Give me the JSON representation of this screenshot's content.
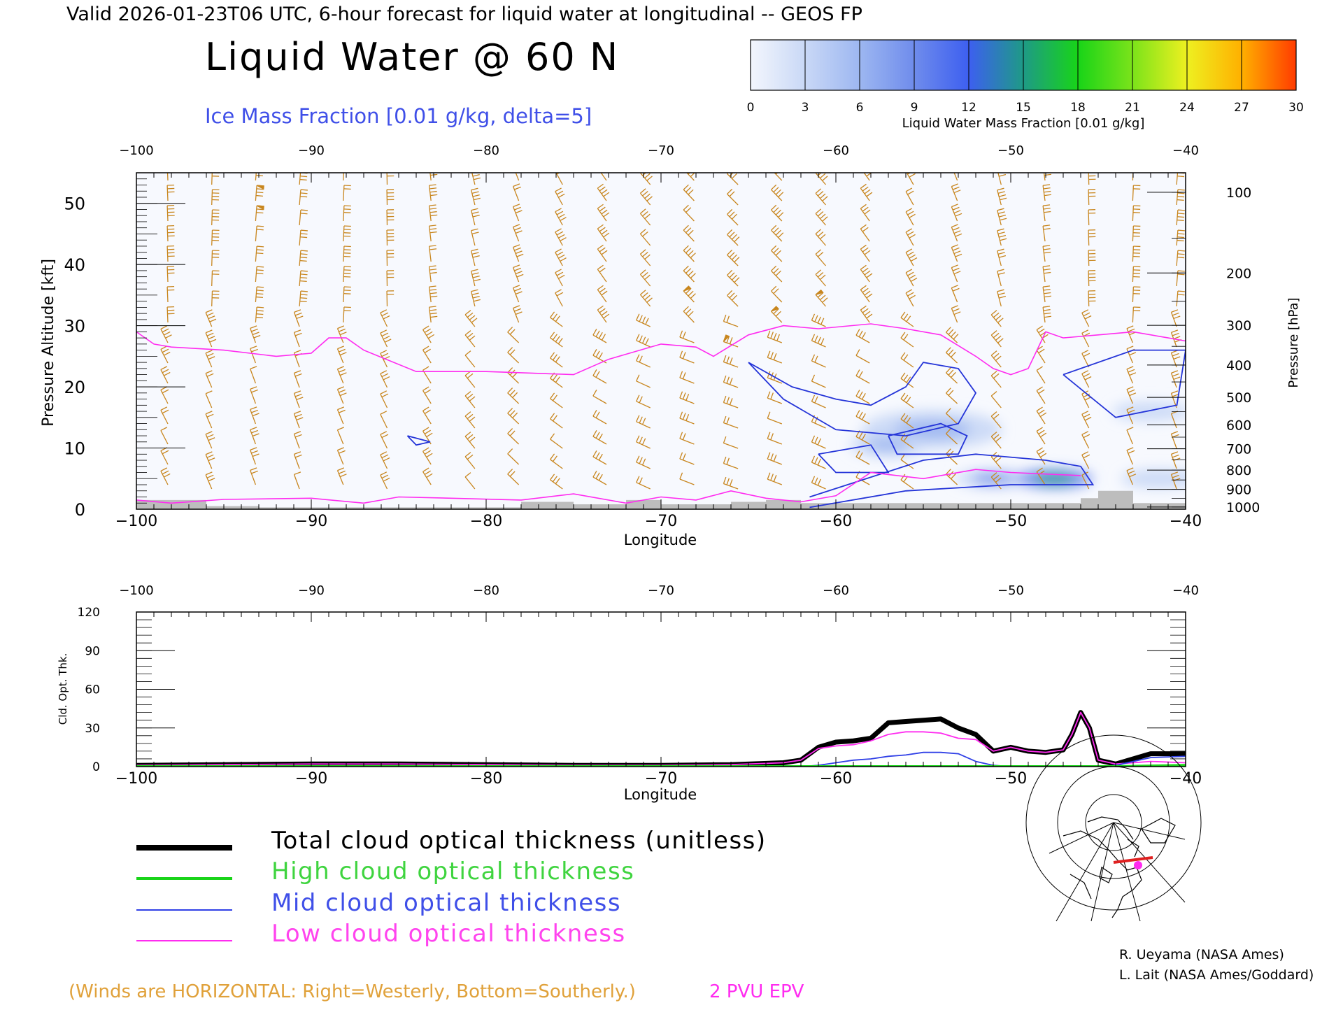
{
  "header": {
    "valid_line": "Valid 2026-01-23T06 UTC, 6-hour forecast for liquid water at longitudinal -- GEOS FP",
    "main_title": "Liquid Water @ 60 N",
    "contour_label": "Ice Mass Fraction [0.01 g/kg, delta=5]"
  },
  "colorbar": {
    "ticks": [
      "0",
      "3",
      "6",
      "9",
      "12",
      "15",
      "18",
      "21",
      "24",
      "27",
      "30"
    ],
    "colors": [
      "#f3f6fd",
      "#c9d8f6",
      "#9db7f1",
      "#6f8cec",
      "#3d5ff0",
      "#1e9a86",
      "#18d418",
      "#7be31a",
      "#eef020",
      "#ffb000",
      "#ff3b00"
    ],
    "label": "Liquid Water Mass Fraction [0.01 g/kg]"
  },
  "top_panel": {
    "x_ticks": [
      "−100",
      "−90",
      "−80",
      "−70",
      "−60",
      "−50",
      "−40"
    ],
    "y_left_ticks": [
      "0",
      "10",
      "20",
      "30",
      "40",
      "50"
    ],
    "y_left_label": "Pressure Altitude [kft]",
    "y_right_ticks": [
      "100",
      "200",
      "300",
      "400",
      "500",
      "600",
      "700",
      "800",
      "900",
      "1000"
    ],
    "y_right_label": "Pressure [hPa]",
    "x_label": "Longitude"
  },
  "bottom_panel": {
    "x_ticks": [
      "−100",
      "−90",
      "−80",
      "−70",
      "−60",
      "−50",
      "−40"
    ],
    "y_ticks": [
      "0",
      "30",
      "60",
      "90",
      "120"
    ],
    "y_label": "Cld. Opt. Thk.",
    "x_label": "Longitude"
  },
  "legend": {
    "items": [
      {
        "label": "Total cloud optical thickness (unitless)",
        "color": "#000000"
      },
      {
        "label": "High cloud optical thickness",
        "color": "#19d419"
      },
      {
        "label": "Mid cloud optical thickness",
        "color": "#2f3fe6"
      },
      {
        "label": "Low cloud optical thickness",
        "color": "#ff2cf0"
      }
    ]
  },
  "credits": {
    "line1": "R. Ueyama (NASA Ames)",
    "line2": "L. Lait (NASA Ames/Goddard)"
  },
  "footer": {
    "winds_note": "(Winds are HORIZONTAL: Right=Westerly, Bottom=Southerly.)",
    "pvu_label": "2 PVU EPV"
  },
  "colors": {
    "barb": "#c8861e",
    "pvu": "#ff2cf0",
    "ice": "#2434d8",
    "total": "#000000",
    "high": "#19d419",
    "mid": "#2f3fe6",
    "low": "#ff2cf0",
    "terrain": "#bdbdbd"
  },
  "chart_data": [
    {
      "type": "heatmap",
      "title": "Liquid Water @ 60 N",
      "xlabel": "Longitude",
      "ylabel": "Pressure Altitude [kft]",
      "xlim": [
        -100,
        -40
      ],
      "ylim": [
        0,
        55
      ],
      "colorbar_label": "Liquid Water Mass Fraction [0.01 g/kg]",
      "colorbar_range": [
        0,
        30
      ],
      "liquid_water_blobs": [
        {
          "lon": -54.5,
          "kft": 13.0,
          "peak": 6
        },
        {
          "lon": -57.0,
          "kft": 10.5,
          "peak": 5
        },
        {
          "lon": -51.0,
          "kft": 5.0,
          "peak": 9
        },
        {
          "lon": -47.5,
          "kft": 5.0,
          "peak": 16
        },
        {
          "lon": -41.5,
          "kft": 5.0,
          "peak": 3
        },
        {
          "lon": -42.0,
          "kft": 16.0,
          "peak": 2
        }
      ],
      "ice_contours": [
        {
          "lon": [
            -65,
            -62.5,
            -60,
            -58,
            -56,
            -55,
            -53,
            -52,
            -53,
            -56,
            -60,
            -63,
            -65
          ],
          "kft": [
            24,
            20,
            18,
            17,
            20,
            24,
            23,
            19,
            14,
            12,
            13,
            18,
            24
          ]
        },
        {
          "lon": [
            -61,
            -58,
            -57,
            -60,
            -61
          ],
          "kft": [
            9,
            10.5,
            6,
            6,
            9
          ]
        },
        {
          "lon": [
            -57,
            -54,
            -52.5,
            -53,
            -56.5,
            -57
          ],
          "kft": [
            12,
            14,
            12,
            9,
            9,
            12
          ]
        },
        {
          "lon": [
            -84.5,
            -83.2,
            -84,
            -84.5
          ],
          "kft": [
            12,
            11,
            10.5,
            12
          ]
        },
        {
          "lon": [
            -61.5,
            -55,
            -52,
            -48,
            -46,
            -45.3,
            -50,
            -56,
            -61.5
          ],
          "kft": [
            2,
            8,
            9,
            8,
            7,
            4,
            4,
            3,
            0.3
          ]
        },
        {
          "lon": [
            -47,
            -43,
            -40,
            -40.5,
            -44,
            -47
          ],
          "kft": [
            22,
            26,
            26,
            17,
            15,
            22
          ]
        }
      ],
      "pvu_2_line": {
        "lon": [
          -100,
          -99,
          -98,
          -95,
          -92,
          -90,
          -89,
          -88,
          -87,
          -84,
          -80,
          -75,
          -73,
          -70,
          -68,
          -67,
          -65,
          -63,
          -61,
          -58,
          -56,
          -54,
          -52,
          -51,
          -50,
          -49,
          -48,
          -47,
          -45,
          -43,
          -41,
          -40
        ],
        "kft": [
          29,
          27,
          26.5,
          26,
          25,
          25.5,
          28,
          28,
          26,
          22.5,
          22.5,
          22,
          24.5,
          27,
          26.5,
          25,
          28.5,
          30,
          29.5,
          30.3,
          29.5,
          28.5,
          25,
          23,
          22,
          23,
          29,
          28,
          28.5,
          29,
          28,
          27.5
        ]
      },
      "terrain": {
        "lon": [
          -100,
          -98,
          -96,
          -93,
          -88,
          -85,
          -80,
          -78,
          -75,
          -72,
          -70,
          -66,
          -64,
          -62,
          -60,
          -50,
          -46,
          -45,
          -43,
          -40
        ],
        "kft": [
          1.5,
          1.5,
          0.5,
          0.3,
          0.3,
          0.3,
          0.3,
          1.2,
          0.8,
          1.5,
          0.8,
          1.2,
          1.5,
          1.0,
          1.0,
          1.0,
          1.8,
          3.0,
          1.0,
          0.5
        ]
      }
    },
    {
      "type": "line",
      "xlabel": "Longitude",
      "ylabel": "Cld. Opt. Thk.",
      "xlim": [
        -100,
        -40
      ],
      "ylim": [
        0,
        120
      ],
      "x": [
        -100,
        -95,
        -90,
        -85,
        -80,
        -75,
        -70,
        -66,
        -63,
        -62,
        -61,
        -60,
        -59,
        -58,
        -57,
        -56,
        -55,
        -54,
        -53,
        -52,
        -51,
        -50,
        -49,
        -48,
        -47,
        -46.5,
        -46,
        -45.5,
        -45,
        -44,
        -42,
        -40
      ],
      "series": [
        {
          "name": "Total cloud optical thickness (unitless)",
          "values": [
            1,
            1.5,
            2,
            2,
            1.5,
            1,
            1,
            1.5,
            3,
            5,
            15,
            19,
            20,
            22,
            34,
            35,
            36,
            37,
            30,
            25,
            12,
            15,
            12,
            11,
            13,
            25,
            42,
            30,
            5,
            2,
            10,
            10
          ]
        },
        {
          "name": "High cloud optical thickness",
          "values": [
            0,
            0,
            0,
            0,
            0,
            0,
            0,
            0,
            0,
            0,
            0,
            0,
            0,
            0,
            0,
            0,
            0,
            0,
            0,
            0,
            0,
            0,
            0,
            0,
            0,
            0,
            0,
            0,
            0,
            0,
            0.5,
            1
          ]
        },
        {
          "name": "Mid cloud optical thickness",
          "values": [
            0,
            0,
            0,
            0,
            0,
            0,
            0,
            0,
            0,
            0,
            1,
            3,
            5,
            6,
            8,
            9,
            11,
            11,
            10,
            4,
            1,
            0,
            0,
            0,
            0,
            0,
            0,
            0,
            0,
            1,
            7,
            8
          ]
        },
        {
          "name": "Low cloud optical thickness",
          "values": [
            1,
            1.5,
            2,
            2,
            1.5,
            1,
            1,
            1.5,
            3,
            5,
            14,
            16,
            17,
            20,
            25,
            27,
            27,
            26,
            22,
            21,
            12,
            15,
            12,
            11,
            13,
            25,
            42,
            30,
            5,
            2,
            4,
            3
          ]
        }
      ]
    }
  ]
}
